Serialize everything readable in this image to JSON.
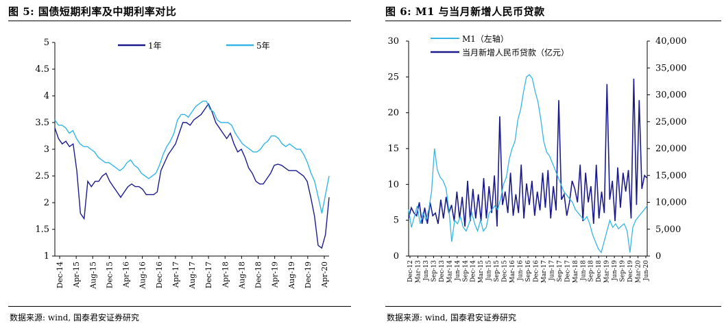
{
  "figures": [
    {
      "title": "图 5:  国债短期利率及中期利率对比",
      "source": "数据来源: wind, 国泰君安证券研究"
    },
    {
      "title": "图 6:  M1 与当月新增人民币贷款",
      "source": "数据来源: wind, 国泰君安证券研究"
    }
  ],
  "chart_data": [
    {
      "type": "line",
      "title": "国债短期利率及中期利率对比",
      "xlabel": "",
      "ylabel": "",
      "ylim": [
        1,
        5
      ],
      "yticks": [
        "5",
        "4.5",
        "4",
        "3.5",
        "3",
        "2.5",
        "2",
        "1.5",
        "1"
      ],
      "x_tick_labels": [
        "Dec-14",
        "Apr-15",
        "Aug-15",
        "Dec-15",
        "Apr-16",
        "Aug-16",
        "Dec-16",
        "Apr-17",
        "Aug-17",
        "Dec-17",
        "Apr-18",
        "Aug-18",
        "Dec-18",
        "Apr-19",
        "Aug-19",
        "Dec-19",
        "Apr-20"
      ],
      "legend": [
        "1年",
        "5年"
      ],
      "colors": {
        "1年": "#1a1a8c",
        "5年": "#33b5e5"
      },
      "series": [
        {
          "name": "1年",
          "values": [
            3.4,
            3.2,
            3.1,
            3.15,
            3.05,
            3.1,
            2.6,
            1.8,
            1.7,
            2.4,
            2.3,
            2.4,
            2.4,
            2.5,
            2.55,
            2.4,
            2.3,
            2.2,
            2.1,
            2.2,
            2.3,
            2.35,
            2.3,
            2.3,
            2.25,
            2.15,
            2.15,
            2.15,
            2.2,
            2.6,
            2.75,
            2.9,
            3.0,
            3.1,
            3.3,
            3.5,
            3.5,
            3.45,
            3.55,
            3.6,
            3.65,
            3.75,
            3.85,
            3.7,
            3.5,
            3.4,
            3.3,
            3.2,
            3.3,
            3.1,
            2.95,
            3.0,
            2.85,
            2.65,
            2.55,
            2.4,
            2.35,
            2.35,
            2.45,
            2.55,
            2.7,
            2.72,
            2.7,
            2.65,
            2.6,
            2.6,
            2.6,
            2.55,
            2.5,
            2.4,
            2.1,
            1.75,
            1.2,
            1.15,
            1.4,
            2.1
          ]
        },
        {
          "name": "5年",
          "values": [
            3.55,
            3.45,
            3.45,
            3.4,
            3.3,
            3.35,
            3.2,
            3.1,
            3.05,
            3.05,
            3.0,
            2.95,
            2.85,
            2.8,
            2.75,
            2.75,
            2.7,
            2.65,
            2.6,
            2.65,
            2.75,
            2.8,
            2.7,
            2.65,
            2.55,
            2.5,
            2.45,
            2.5,
            2.55,
            2.7,
            2.9,
            3.05,
            3.15,
            3.3,
            3.55,
            3.65,
            3.65,
            3.6,
            3.7,
            3.8,
            3.85,
            3.9,
            3.9,
            3.75,
            3.7,
            3.55,
            3.5,
            3.5,
            3.5,
            3.45,
            3.3,
            3.2,
            3.1,
            3.05,
            3.0,
            2.95,
            2.95,
            3.0,
            3.1,
            3.15,
            3.25,
            3.25,
            3.2,
            3.1,
            3.05,
            3.1,
            3.05,
            3.0,
            3.0,
            2.9,
            2.75,
            2.55,
            2.4,
            2.1,
            1.8,
            2.15,
            2.5
          ]
        }
      ]
    },
    {
      "type": "line",
      "title": "M1与当月新增人民币贷款",
      "xlabel": "",
      "ylabel": "",
      "ylim": [
        0,
        30
      ],
      "y2lim": [
        0,
        40000
      ],
      "yticks": [
        "30",
        "25",
        "20",
        "15",
        "10",
        "5",
        "0"
      ],
      "y2ticks": [
        "40,000",
        "35,000",
        "30,000",
        "25,000",
        "20,000",
        "15,000",
        "10,000",
        "5,000",
        "0"
      ],
      "x_tick_labels": [
        "Dec-12",
        "Mar-13",
        "Jun-13",
        "Sep-13",
        "Dec-13",
        "Mar-14",
        "Jun-14",
        "Sep-14",
        "Dec-14",
        "Mar-15",
        "Jun-15",
        "Sep-15",
        "Dec-15",
        "Mar-16",
        "Jun-16",
        "Sep-16",
        "Dec-16",
        "Mar-17",
        "Jun-17",
        "Sep-17",
        "Dec-17",
        "Mar-18",
        "Jun-18",
        "Sep-18",
        "Dec-18",
        "Mar-19",
        "Jun-19",
        "Sep-19",
        "Dec-19",
        "Mar-20",
        "Jun-20"
      ],
      "legend": [
        "M1（左轴）",
        "当月新增人民币贷款（亿元）"
      ],
      "colors": {
        "M1（左轴）": "#33b5e5",
        "当月新增人民币贷款（亿元）": "#1a1a8c"
      },
      "series": [
        {
          "name": "M1（左轴）",
          "axis": "left",
          "values": [
            6.5,
            4,
            5.5,
            7,
            4.5,
            6,
            5,
            6.5,
            9,
            15,
            12,
            11,
            10.5,
            9.5,
            6.5,
            2,
            5,
            4.5,
            5.5,
            4,
            3.5,
            4.5,
            6,
            4.5,
            3.5,
            5,
            3.5,
            4,
            6,
            6.5,
            7,
            6.5,
            8,
            10,
            11,
            13.5,
            15,
            16,
            19,
            20.5,
            23,
            25,
            25.3,
            24.8,
            23,
            21.5,
            19,
            16,
            14.5,
            14,
            13,
            12,
            11,
            10,
            9,
            8.5,
            8,
            7.5,
            6.5,
            6,
            5.5,
            5,
            5.5,
            4.5,
            3,
            2,
            1,
            0.5,
            2,
            3.5,
            5,
            4,
            4.5,
            3.8,
            4.2,
            4.5,
            3.5,
            0.5,
            4,
            5,
            5.5,
            6,
            6.5,
            7
          ]
        },
        {
          "name": "当月新增人民币贷款（亿元）",
          "axis": "right",
          "values": [
            7000,
            9000,
            8000,
            7500,
            10000,
            6000,
            9000,
            6000,
            10000,
            7500,
            8000,
            6000,
            10500,
            7000,
            11000,
            8000,
            9500,
            6500,
            12000,
            7000,
            11000,
            5500,
            14000,
            6500,
            12500,
            7000,
            11500,
            6500,
            14500,
            7000,
            13000,
            8000,
            15000,
            5500,
            26000,
            9500,
            12000,
            8000,
            15500,
            7500,
            11500,
            8000,
            17000,
            7000,
            13500,
            9500,
            14000,
            7500,
            12000,
            8500,
            15500,
            9000,
            16000,
            7000,
            13000,
            8500,
            29000,
            10500,
            11500,
            7500,
            10000,
            14000,
            12500,
            10000,
            17000,
            6500,
            15500,
            10000,
            13000,
            6000,
            17000,
            7000,
            12000,
            8000,
            32000,
            10500,
            14000,
            6500,
            16500,
            9000,
            15500,
            12000,
            16000,
            7000,
            33000,
            9500,
            29000,
            12500,
            15000,
            14500
          ]
        }
      ]
    }
  ]
}
